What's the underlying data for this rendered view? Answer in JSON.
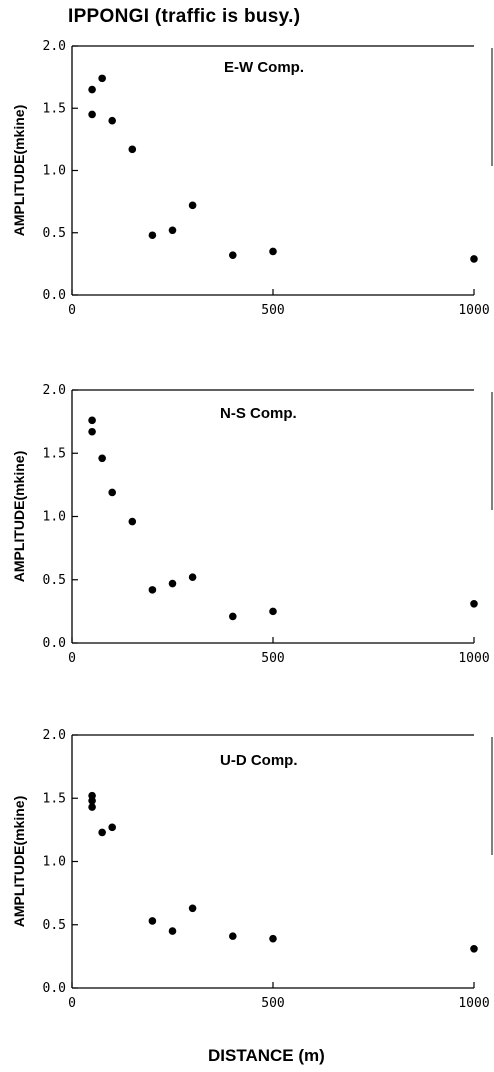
{
  "figure": {
    "title": "IPPONGI (traffic is busy.)",
    "xlabel": "DISTANCE (m)"
  },
  "chart_data": [
    {
      "type": "scatter",
      "title": "E-W Comp.",
      "ylabel": "AMPLITUDE(mkine)",
      "xlim": [
        0,
        1000
      ],
      "ylim": [
        0,
        2.0
      ],
      "xticks": [
        "0",
        "500",
        "1000"
      ],
      "yticks": [
        "0.0",
        "0.5",
        "1.0",
        "1.5",
        "2.0"
      ],
      "points": [
        {
          "x": 50,
          "y": 1.65
        },
        {
          "x": 50,
          "y": 1.45
        },
        {
          "x": 75,
          "y": 1.74
        },
        {
          "x": 100,
          "y": 1.4
        },
        {
          "x": 150,
          "y": 1.17
        },
        {
          "x": 200,
          "y": 0.48
        },
        {
          "x": 250,
          "y": 0.52
        },
        {
          "x": 300,
          "y": 0.72
        },
        {
          "x": 400,
          "y": 0.32
        },
        {
          "x": 500,
          "y": 0.35
        },
        {
          "x": 1000,
          "y": 0.29
        }
      ]
    },
    {
      "type": "scatter",
      "title": "N-S Comp.",
      "ylabel": "AMPLITUDE(mkine)",
      "xlim": [
        0,
        1000
      ],
      "ylim": [
        0,
        2.0
      ],
      "xticks": [
        "0",
        "500",
        "1000"
      ],
      "yticks": [
        "0.0",
        "0.5",
        "1.0",
        "1.5",
        "2.0"
      ],
      "points": [
        {
          "x": 50,
          "y": 1.76
        },
        {
          "x": 50,
          "y": 1.67
        },
        {
          "x": 75,
          "y": 1.46
        },
        {
          "x": 100,
          "y": 1.19
        },
        {
          "x": 150,
          "y": 0.96
        },
        {
          "x": 200,
          "y": 0.42
        },
        {
          "x": 250,
          "y": 0.47
        },
        {
          "x": 300,
          "y": 0.52
        },
        {
          "x": 400,
          "y": 0.21
        },
        {
          "x": 500,
          "y": 0.25
        },
        {
          "x": 1000,
          "y": 0.31
        }
      ]
    },
    {
      "type": "scatter",
      "title": "U-D Comp.",
      "ylabel": "AMPLITUDE(mkine)",
      "xlim": [
        0,
        1000
      ],
      "ylim": [
        0,
        2.0
      ],
      "xticks": [
        "0",
        "500",
        "1000"
      ],
      "yticks": [
        "0.0",
        "0.5",
        "1.0",
        "1.5",
        "2.0"
      ],
      "points": [
        {
          "x": 50,
          "y": 1.52
        },
        {
          "x": 50,
          "y": 1.48
        },
        {
          "x": 50,
          "y": 1.43
        },
        {
          "x": 75,
          "y": 1.23
        },
        {
          "x": 100,
          "y": 1.27
        },
        {
          "x": 200,
          "y": 0.53
        },
        {
          "x": 250,
          "y": 0.45
        },
        {
          "x": 300,
          "y": 0.63
        },
        {
          "x": 400,
          "y": 0.41
        },
        {
          "x": 500,
          "y": 0.39
        },
        {
          "x": 1000,
          "y": 0.31
        }
      ]
    }
  ]
}
